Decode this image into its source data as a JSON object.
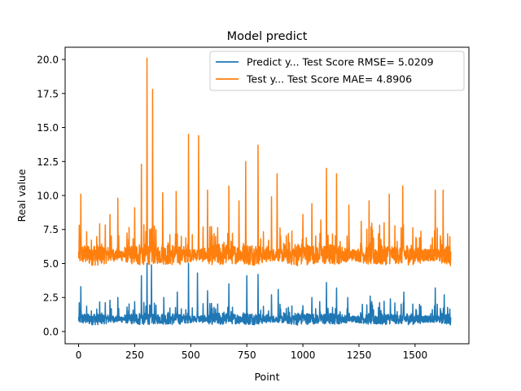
{
  "chart_data": {
    "type": "line",
    "title": "Model predict",
    "xlabel": "Point",
    "ylabel": "Real value",
    "xlim": [
      -60,
      1740
    ],
    "ylim": [
      -0.9,
      20.9
    ],
    "xticks": [
      0,
      250,
      500,
      750,
      1000,
      1250,
      1500
    ],
    "xtick_labels": [
      "0",
      "250",
      "500",
      "750",
      "1000",
      "1250",
      "1500"
    ],
    "yticks": [
      0.0,
      2.5,
      5.0,
      7.5,
      10.0,
      12.5,
      15.0,
      17.5,
      20.0
    ],
    "ytick_labels": [
      "0.0",
      "2.5",
      "5.0",
      "7.5",
      "10.0",
      "12.5",
      "15.0",
      "17.5",
      "20.0"
    ],
    "grid": false,
    "legend_position": "top-right",
    "n_points": 1660,
    "series": [
      {
        "name": "Predict y... Test Score RMSE= 5.0209",
        "color": "#1f77b4",
        "baseline": 0.9,
        "spikes": [
          [
            10,
            3.3
          ],
          [
            140,
            2.3
          ],
          [
            175,
            2.5
          ],
          [
            250,
            2.2
          ],
          [
            280,
            4.1
          ],
          [
            305,
            5.0
          ],
          [
            325,
            4.9
          ],
          [
            380,
            2.5
          ],
          [
            440,
            2.9
          ],
          [
            490,
            5.0
          ],
          [
            530,
            4.3
          ],
          [
            575,
            3.0
          ],
          [
            670,
            3.5
          ],
          [
            750,
            4.1
          ],
          [
            800,
            4.2
          ],
          [
            860,
            2.7
          ],
          [
            890,
            3.1
          ],
          [
            1000,
            1.9
          ],
          [
            1040,
            2.5
          ],
          [
            1075,
            2.2
          ],
          [
            1105,
            3.6
          ],
          [
            1150,
            3.2
          ],
          [
            1200,
            2.5
          ],
          [
            1265,
            2.0
          ],
          [
            1300,
            2.6
          ],
          [
            1390,
            2.4
          ],
          [
            1450,
            2.9
          ],
          [
            1520,
            2.0
          ],
          [
            1590,
            3.2
          ],
          [
            1630,
            2.7
          ]
        ]
      },
      {
        "name": "Test y... Test Score MAE= 4.8906",
        "color": "#ff7f0e",
        "baseline": 5.6,
        "spikes": [
          [
            10,
            10.1
          ],
          [
            140,
            8.6
          ],
          [
            175,
            9.8
          ],
          [
            250,
            9.1
          ],
          [
            280,
            12.3
          ],
          [
            305,
            20.1
          ],
          [
            330,
            17.8
          ],
          [
            375,
            10.2
          ],
          [
            435,
            10.3
          ],
          [
            490,
            14.5
          ],
          [
            535,
            14.4
          ],
          [
            575,
            10.4
          ],
          [
            670,
            10.7
          ],
          [
            715,
            9.6
          ],
          [
            745,
            12.5
          ],
          [
            800,
            13.7
          ],
          [
            860,
            9.9
          ],
          [
            885,
            11.6
          ],
          [
            1000,
            8.6
          ],
          [
            1015,
            6.9
          ],
          [
            1040,
            9.4
          ],
          [
            1080,
            8.2
          ],
          [
            1105,
            12.0
          ],
          [
            1150,
            11.6
          ],
          [
            1205,
            9.3
          ],
          [
            1260,
            8.1
          ],
          [
            1295,
            9.6
          ],
          [
            1385,
            10.1
          ],
          [
            1445,
            10.7
          ],
          [
            1520,
            6.9
          ],
          [
            1590,
            10.4
          ],
          [
            1625,
            10.4
          ]
        ]
      }
    ]
  }
}
